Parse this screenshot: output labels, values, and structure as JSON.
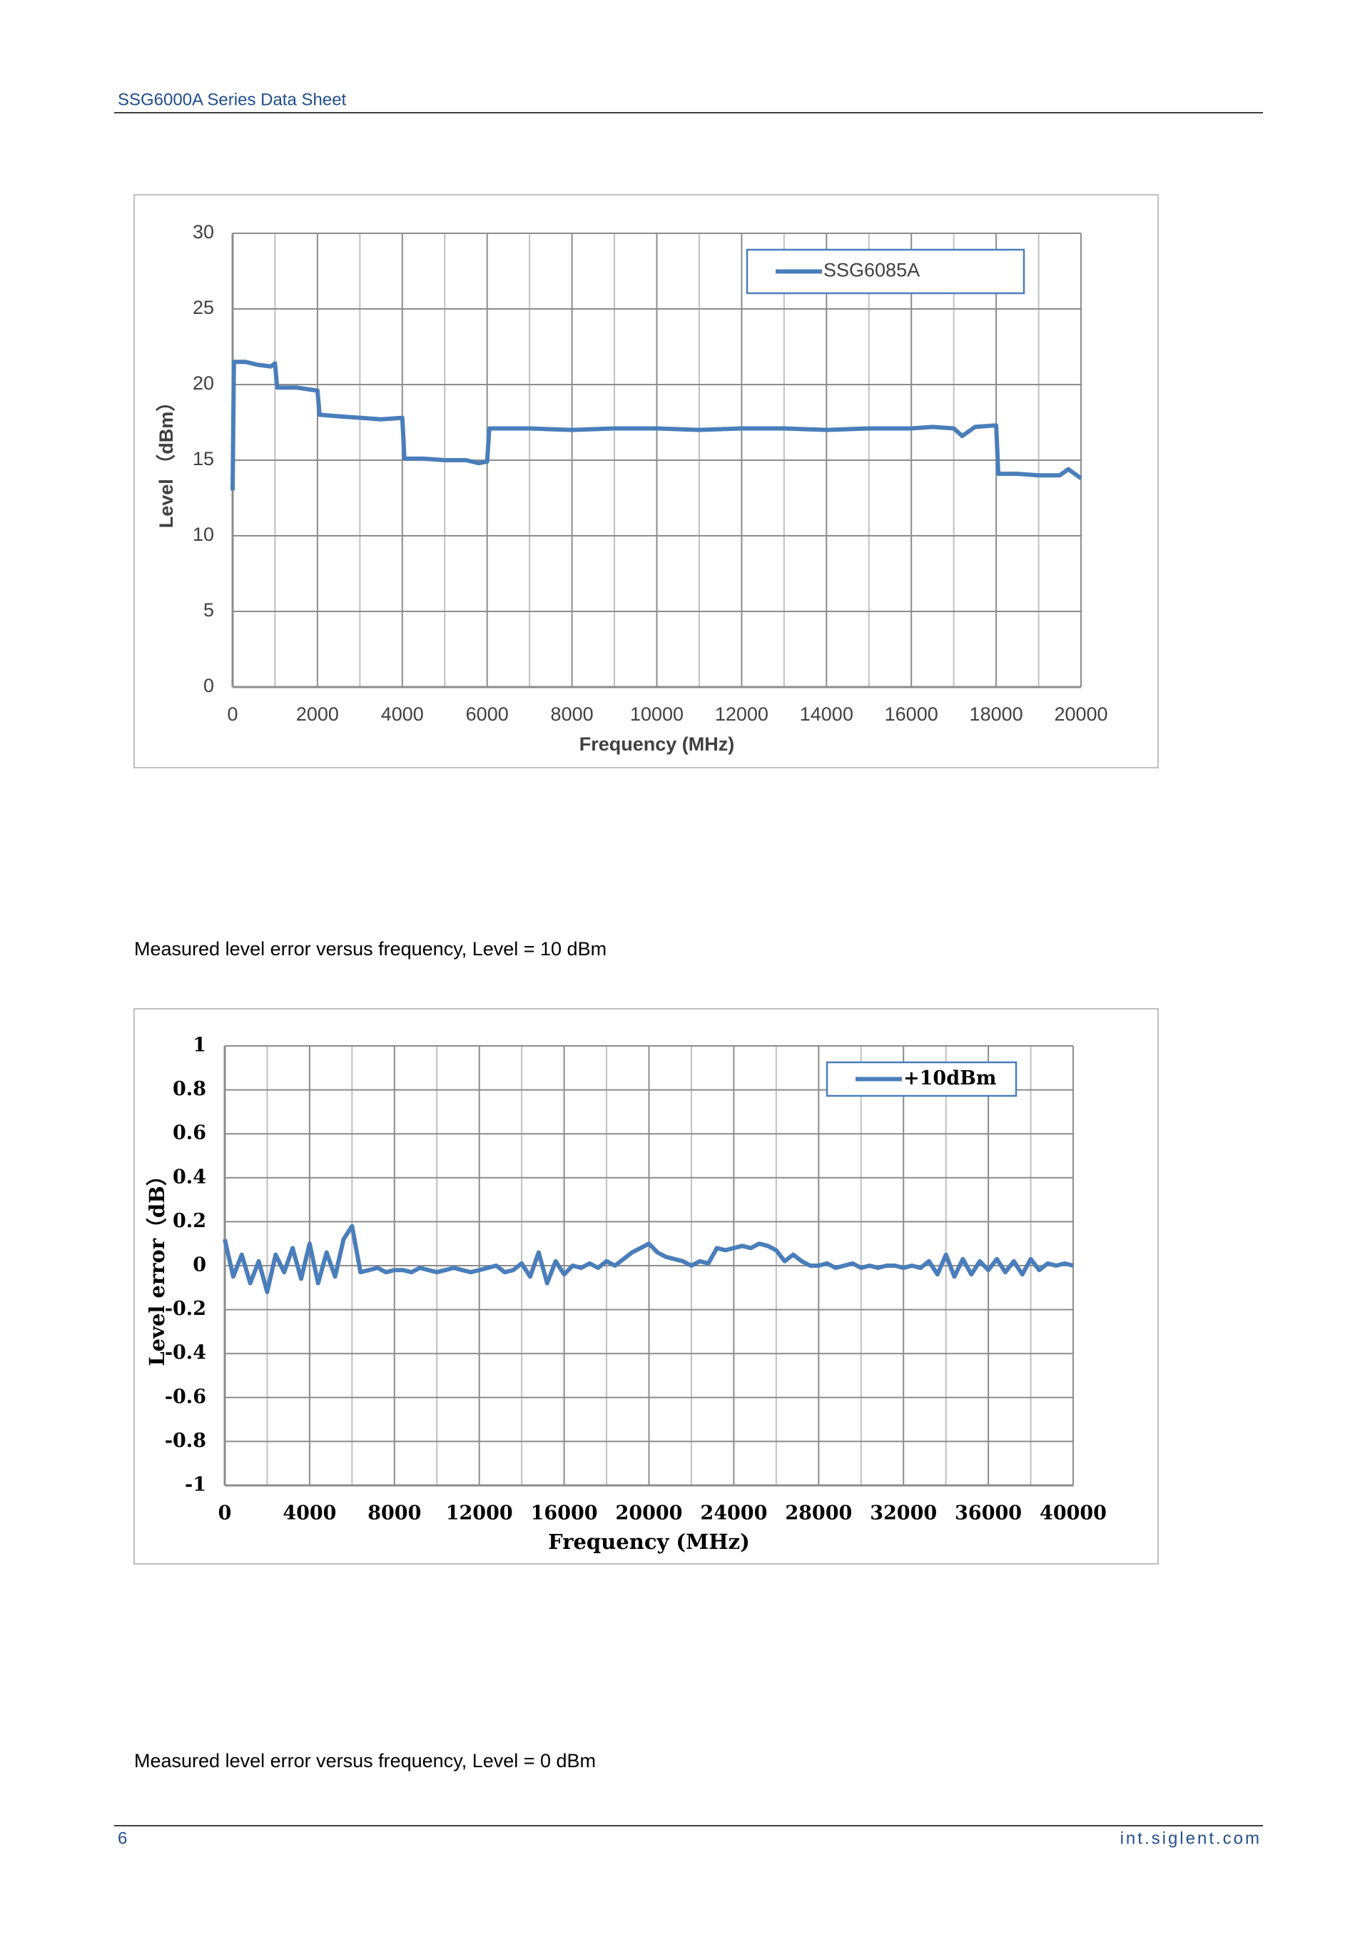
{
  "header": {
    "title": "SSG6000A Series Data Sheet"
  },
  "captions": [
    "Measured level error versus frequency, Level = 10 dBm",
    "Measured level error versus frequency, Level = 0 dBm"
  ],
  "footer": {
    "page": "6",
    "site": "int.siglent.com"
  },
  "chart_data": [
    {
      "type": "line",
      "x_label": "Frequency (MHz)",
      "y_label": "Level （dBm）",
      "x": [
        0,
        30,
        300,
        600,
        900,
        1000,
        1050,
        1500,
        2000,
        2050,
        2500,
        3000,
        3500,
        4000,
        4050,
        4500,
        5000,
        5500,
        5800,
        6000,
        6050,
        7000,
        8000,
        9000,
        10000,
        11000,
        12000,
        13000,
        14000,
        15000,
        16000,
        16500,
        17000,
        17200,
        17500,
        18000,
        18050,
        18500,
        19000,
        19500,
        19700,
        20000
      ],
      "series": [
        {
          "name": "SSG6085A",
          "color": "#4a7ebb",
          "values": [
            13,
            21.5,
            21.5,
            21.3,
            21.2,
            21.4,
            19.8,
            19.8,
            19.6,
            18,
            17.9,
            17.8,
            17.7,
            17.8,
            15.1,
            15.1,
            15.0,
            15.0,
            14.8,
            14.9,
            17.1,
            17.1,
            17.0,
            17.1,
            17.1,
            17.0,
            17.1,
            17.1,
            17.0,
            17.1,
            17.1,
            17.2,
            17.1,
            16.6,
            17.2,
            17.3,
            14.1,
            14.1,
            14.0,
            14.0,
            14.4,
            13.8
          ]
        }
      ],
      "xlim": [
        0,
        20000
      ],
      "xticks": [
        0,
        2000,
        4000,
        6000,
        8000,
        10000,
        12000,
        14000,
        16000,
        18000,
        20000
      ],
      "ylim": [
        0,
        30
      ],
      "yticks": [
        0,
        5,
        10,
        15,
        20,
        25,
        30
      ],
      "grid": true,
      "legend": "upper right"
    },
    {
      "type": "line",
      "x_label": "Frequency (MHz)",
      "y_label": "Level error（dB）",
      "x": [
        0,
        400,
        800,
        1200,
        1600,
        2000,
        2400,
        2800,
        3200,
        3600,
        4000,
        4400,
        4800,
        5200,
        5600,
        6000,
        6400,
        6800,
        7200,
        7600,
        8000,
        8400,
        8800,
        9200,
        9600,
        10000,
        10400,
        10800,
        11200,
        11600,
        12000,
        12400,
        12800,
        13200,
        13600,
        14000,
        14400,
        14800,
        15200,
        15600,
        16000,
        16400,
        16800,
        17200,
        17600,
        18000,
        18400,
        18800,
        19200,
        19600,
        20000,
        20400,
        20800,
        21200,
        21600,
        22000,
        22400,
        22800,
        23200,
        23600,
        24000,
        24400,
        24800,
        25200,
        25600,
        26000,
        26400,
        26800,
        27200,
        27600,
        28000,
        28400,
        28800,
        29200,
        29600,
        30000,
        30400,
        30800,
        31200,
        31600,
        32000,
        32400,
        32800,
        33200,
        33600,
        34000,
        34400,
        34800,
        35200,
        35600,
        36000,
        36400,
        36800,
        37200,
        37600,
        38000,
        38400,
        38800,
        39200,
        39600,
        40000
      ],
      "series": [
        {
          "name": "+10dBm",
          "color": "#4a7ebb",
          "values": [
            0.12,
            -0.05,
            0.05,
            -0.08,
            0.02,
            -0.12,
            0.05,
            -0.03,
            0.08,
            -0.06,
            0.1,
            -0.08,
            0.06,
            -0.05,
            0.12,
            0.18,
            -0.03,
            -0.02,
            -0.01,
            -0.03,
            -0.02,
            -0.02,
            -0.03,
            -0.01,
            -0.02,
            -0.03,
            -0.02,
            -0.01,
            -0.02,
            -0.03,
            -0.02,
            -0.01,
            0.0,
            -0.03,
            -0.02,
            0.01,
            -0.05,
            0.06,
            -0.08,
            0.02,
            -0.04,
            0.0,
            -0.01,
            0.01,
            -0.01,
            0.02,
            0.0,
            0.03,
            0.06,
            0.08,
            0.1,
            0.06,
            0.04,
            0.03,
            0.02,
            0.0,
            0.02,
            0.01,
            0.08,
            0.07,
            0.08,
            0.09,
            0.08,
            0.1,
            0.09,
            0.07,
            0.02,
            0.05,
            0.02,
            0.0,
            0.0,
            0.01,
            -0.01,
            0.0,
            0.01,
            -0.01,
            0.0,
            -0.01,
            0.0,
            0.0,
            -0.01,
            0.0,
            -0.01,
            0.02,
            -0.04,
            0.05,
            -0.05,
            0.03,
            -0.04,
            0.02,
            -0.02,
            0.03,
            -0.03,
            0.02,
            -0.04,
            0.03,
            -0.02,
            0.01,
            0.0,
            0.01,
            0.0
          ]
        }
      ],
      "xlim": [
        0,
        40000
      ],
      "xticks": [
        0,
        4000,
        8000,
        12000,
        16000,
        20000,
        24000,
        28000,
        32000,
        36000,
        40000
      ],
      "ylim": [
        -1,
        1
      ],
      "yticks": [
        -1,
        -0.8,
        -0.6,
        -0.4,
        -0.2,
        0,
        0.2,
        0.4,
        0.6,
        0.8,
        1
      ],
      "grid": true,
      "legend": "upper right"
    }
  ]
}
